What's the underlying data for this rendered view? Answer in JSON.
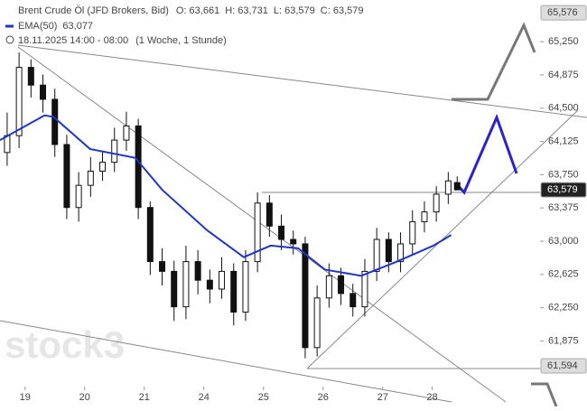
{
  "chart_data": {
    "type": "candlestick",
    "title": "Brent Crude Öl (JFD Brokers, Bid)",
    "ohlc_labels": [
      "O: 63,661",
      "H: 63,731",
      "L: 63,579",
      "C: 63,579"
    ],
    "subtitle": "18.11.2025 14:00 - 08:00",
    "period": "(1 Woche, 1 Stunde)",
    "watermark": "stock3",
    "xlim": [
      -0.42,
      8.64
    ],
    "xticks": [
      {
        "value": 0,
        "label": "19"
      },
      {
        "value": 1,
        "label": "20"
      },
      {
        "value": 2,
        "label": "21"
      },
      {
        "value": 3,
        "label": "24"
      },
      {
        "value": 4,
        "label": "25"
      },
      {
        "value": 5,
        "label": "26"
      },
      {
        "value": 6,
        "label": "27"
      },
      {
        "value": 6.83,
        "label": "28"
      }
    ],
    "ylim": [
      61.136,
      65.72
    ],
    "yticks": [
      {
        "value": 65.25,
        "label": "65,250"
      },
      {
        "value": 64.875,
        "label": "64,875"
      },
      {
        "value": 64.5,
        "label": "64,500"
      },
      {
        "value": 64.125,
        "label": "64,125"
      },
      {
        "value": 63.75,
        "label": "63,750"
      },
      {
        "value": 63.375,
        "label": "63,375"
      },
      {
        "value": 63,
        "label": "63,000"
      },
      {
        "value": 62.625,
        "label": "62,625"
      },
      {
        "value": 62.25,
        "label": "62,250"
      },
      {
        "value": 61.875,
        "label": "61,875"
      }
    ],
    "price_markers": [
      {
        "value": 65.576,
        "label": "65,576",
        "color": "#dddddd"
      },
      {
        "value": 63.579,
        "label": "63,579",
        "color": "#222222"
      },
      {
        "value": 61.594,
        "label": "61,594",
        "color": "#dddddd"
      }
    ],
    "candles": {
      "name": "Brent Crude Öl (JFD Brokers, Bid)",
      "x": [
        -0.3,
        -0.1,
        0.1,
        0.3,
        0.5,
        0.7,
        0.9,
        1.1,
        1.3,
        1.5,
        1.7,
        1.9,
        2.1,
        2.3,
        2.5,
        2.7,
        2.9,
        3.1,
        3.3,
        3.5,
        3.7,
        3.9,
        4.1,
        4.3,
        4.5,
        4.7,
        4.9,
        5.1,
        5.3,
        5.5,
        5.7,
        5.9,
        6.1,
        6.3,
        6.5,
        6.7,
        6.9,
        7.1,
        7.25
      ],
      "open": [
        64.0,
        64.19,
        64.96,
        64.76,
        64.6,
        64.09,
        63.38,
        63.63,
        63.79,
        63.89,
        64.14,
        64.3,
        63.38,
        62.77,
        62.66,
        62.26,
        62.77,
        62.56,
        62.46,
        62.66,
        62.2,
        62.77,
        63.43,
        63.17,
        63.02,
        62.97,
        61.8,
        62.36,
        62.61,
        62.41,
        62.26,
        62.66,
        63.02,
        62.77,
        62.97,
        63.22,
        63.33,
        63.53,
        63.661
      ],
      "high": [
        64.45,
        65.13,
        65.05,
        64.88,
        64.72,
        64.2,
        63.78,
        63.95,
        64.02,
        64.28,
        64.46,
        64.38,
        63.45,
        62.92,
        62.78,
        62.95,
        62.9,
        62.68,
        62.82,
        62.75,
        62.9,
        63.55,
        63.52,
        63.3,
        63.12,
        63.05,
        62.5,
        62.75,
        62.7,
        62.52,
        62.8,
        63.15,
        63.1,
        63.1,
        63.35,
        63.45,
        63.62,
        63.78,
        63.731
      ],
      "low": [
        63.85,
        64.05,
        64.62,
        64.45,
        63.95,
        63.25,
        63.22,
        63.5,
        63.68,
        63.78,
        64.02,
        63.25,
        62.62,
        62.5,
        62.1,
        62.12,
        62.4,
        62.3,
        62.35,
        62.05,
        62.1,
        62.65,
        63.05,
        62.9,
        62.85,
        61.68,
        61.7,
        62.25,
        62.28,
        62.15,
        62.15,
        62.55,
        62.65,
        62.65,
        62.85,
        63.1,
        63.22,
        63.42,
        63.579
      ],
      "close": [
        64.19,
        64.96,
        64.76,
        64.6,
        64.09,
        63.38,
        63.63,
        63.79,
        63.89,
        64.14,
        64.3,
        63.38,
        62.77,
        62.66,
        62.26,
        62.77,
        62.56,
        62.46,
        62.66,
        62.2,
        62.77,
        63.43,
        63.17,
        63.02,
        62.97,
        61.8,
        62.36,
        62.61,
        62.41,
        62.26,
        62.66,
        63.02,
        62.77,
        62.97,
        63.22,
        63.33,
        63.53,
        63.68,
        63.579
      ]
    },
    "series": [
      {
        "name": "EMA(50)",
        "value_label": "63,077",
        "color": "#2236c4",
        "x": [
          -0.42,
          0.33,
          0.48,
          1.09,
          1.85,
          2.3,
          3.06,
          3.67,
          4.12,
          4.58,
          5.03,
          5.64,
          6.24,
          6.85,
          7.15
        ],
        "values": [
          64.14,
          64.42,
          64.4,
          64.04,
          63.94,
          63.58,
          63.12,
          62.82,
          62.95,
          62.92,
          62.68,
          62.61,
          62.77,
          62.95,
          63.07
        ]
      }
    ]
  }
}
